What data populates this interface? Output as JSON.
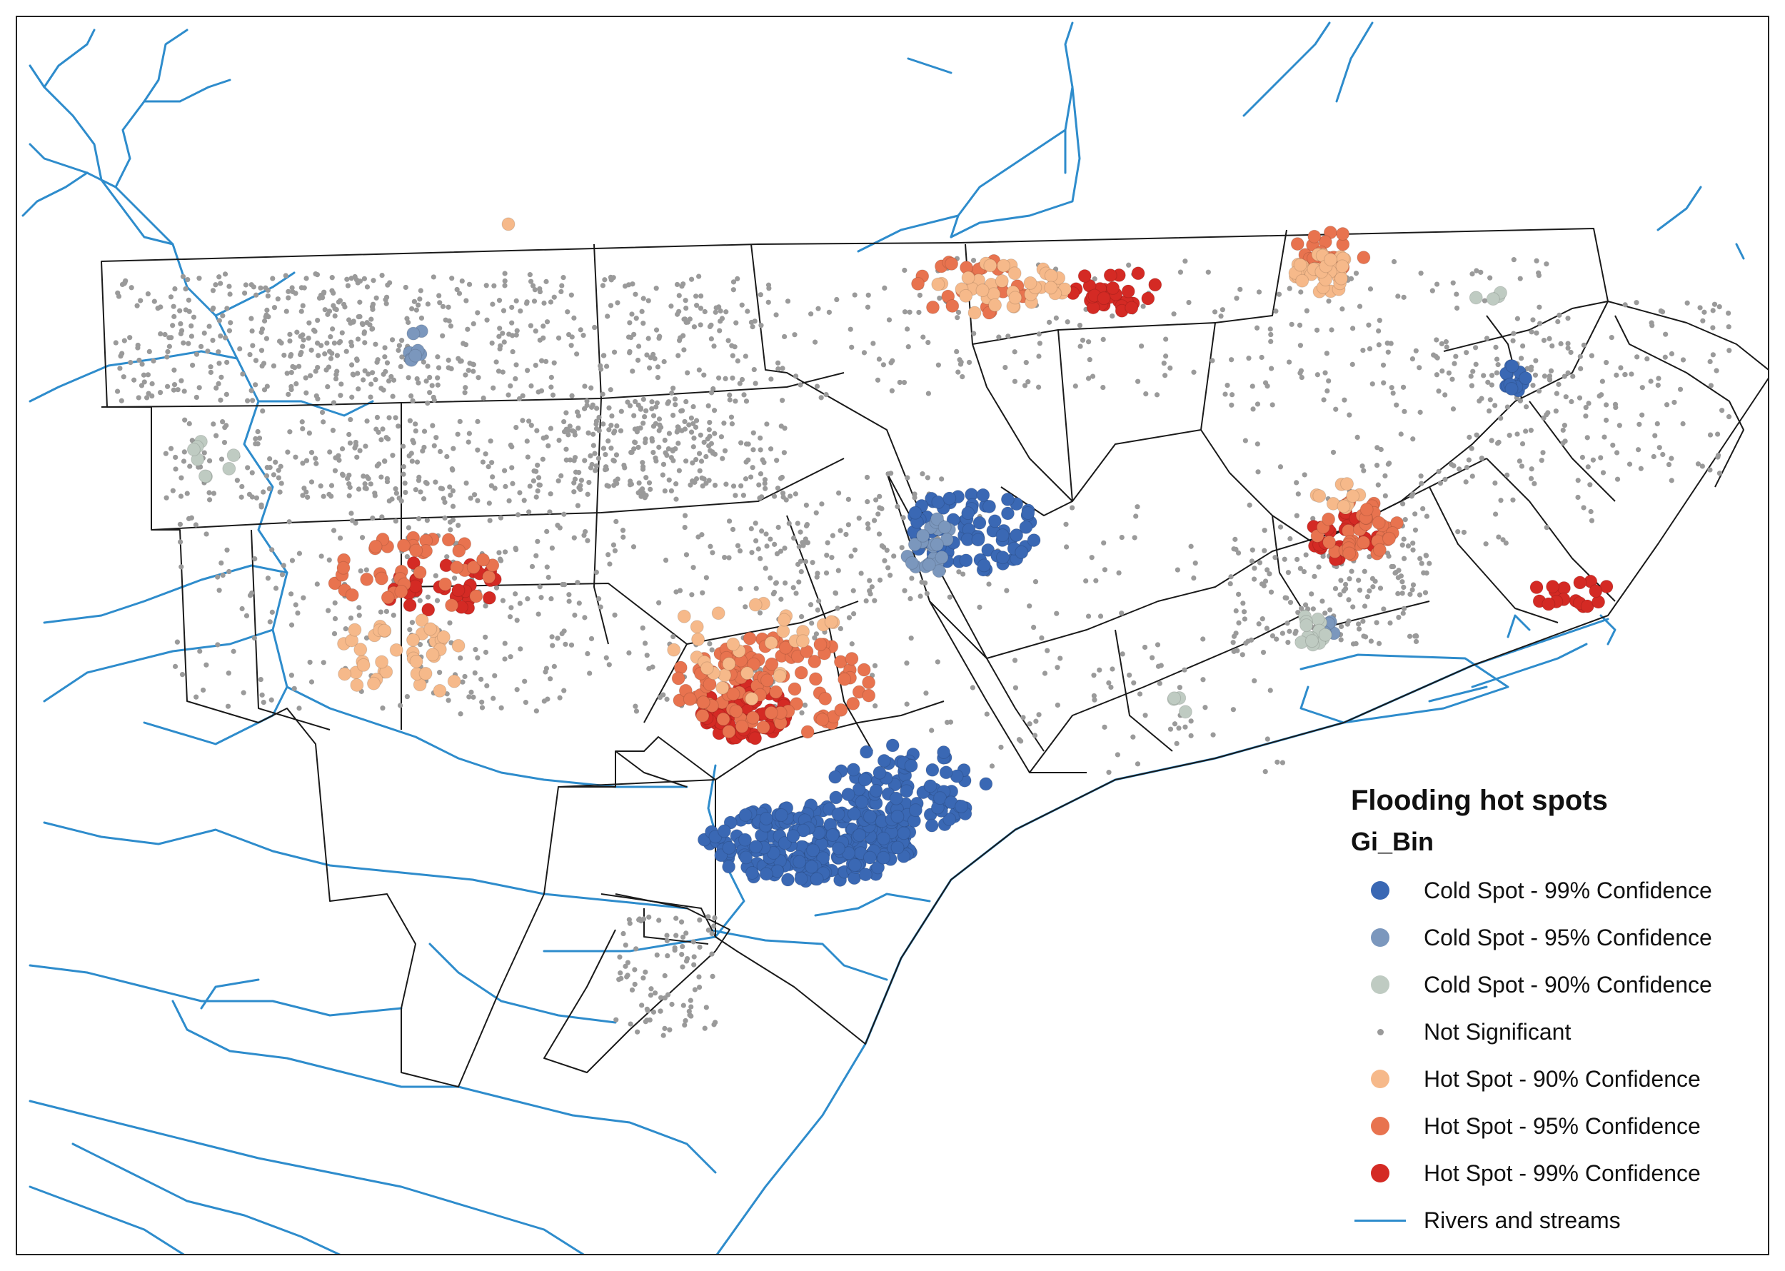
{
  "legend": {
    "title": "Flooding hot spots",
    "subtitle": "Gi_Bin",
    "items": [
      {
        "key": "cold99",
        "label": "Cold Spot - 99% Confidence",
        "color": "#3a68b4",
        "symbol": "circle"
      },
      {
        "key": "cold95",
        "label": "Cold Spot - 95% Confidence",
        "color": "#7b97bd",
        "symbol": "circle"
      },
      {
        "key": "cold90",
        "label": "Cold Spot - 90% Confidence",
        "color": "#bfcbc2",
        "symbol": "circle"
      },
      {
        "key": "ns",
        "label": "Not Significant",
        "color": "#9a9a9a",
        "symbol": "small-dot"
      },
      {
        "key": "hot90",
        "label": "Hot Spot - 90% Confidence",
        "color": "#f6b98a",
        "symbol": "circle"
      },
      {
        "key": "hot95",
        "label": "Hot Spot - 95% Confidence",
        "color": "#e8734f",
        "symbol": "circle"
      },
      {
        "key": "hot99",
        "label": "Hot Spot - 99% Confidence",
        "color": "#d42a24",
        "symbol": "circle"
      },
      {
        "key": "river",
        "label": "Rivers and streams",
        "color": "#2e8ccc",
        "symbol": "line"
      }
    ]
  },
  "colors": {
    "boundary": "#1a1a1a",
    "background": "#ffffff"
  }
}
